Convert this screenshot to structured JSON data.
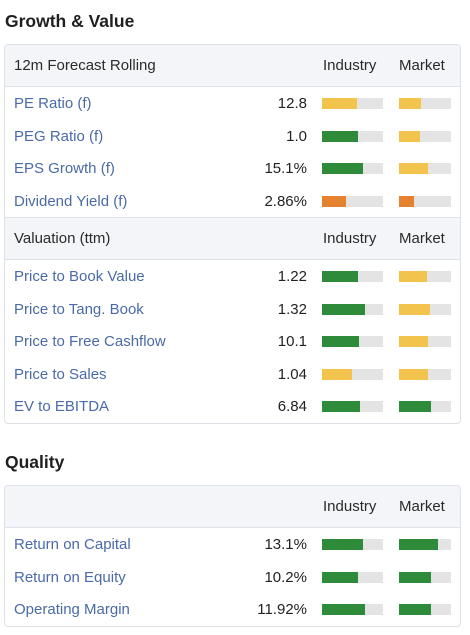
{
  "growth": {
    "title": "Growth & Value",
    "header1": {
      "label": "12m Forecast Rolling",
      "industry": "Industry",
      "market": "Market"
    },
    "rows1": [
      {
        "name": "PE Ratio (f)",
        "value": "12.8",
        "industry": {
          "fraction": 0.57,
          "color": "#f2c34d"
        },
        "market": {
          "fraction": 0.43,
          "color": "#f2c34d"
        }
      },
      {
        "name": "PEG Ratio (f)",
        "value": "1.0",
        "industry": {
          "fraction": 0.59,
          "color": "#2e8b3a"
        },
        "market": {
          "fraction": 0.41,
          "color": "#f2c34d"
        }
      },
      {
        "name": "EPS Growth (f)",
        "value": "15.1%",
        "industry": {
          "fraction": 0.67,
          "color": "#2e8b3a"
        },
        "market": {
          "fraction": 0.55,
          "color": "#f2c34d"
        }
      },
      {
        "name": "Dividend Yield (f)",
        "value": "2.86%",
        "industry": {
          "fraction": 0.39,
          "color": "#e5822f"
        },
        "market": {
          "fraction": 0.28,
          "color": "#e5822f"
        }
      }
    ],
    "header2": {
      "label": "Valuation (ttm)",
      "industry": "Industry",
      "market": "Market"
    },
    "rows2": [
      {
        "name": "Price to Book Value",
        "value": "1.22",
        "industry": {
          "fraction": 0.59,
          "color": "#2e8b3a"
        },
        "market": {
          "fraction": 0.54,
          "color": "#f2c34d"
        }
      },
      {
        "name": "Price to Tang. Book",
        "value": "1.32",
        "industry": {
          "fraction": 0.7,
          "color": "#2e8b3a"
        },
        "market": {
          "fraction": 0.6,
          "color": "#f2c34d"
        }
      },
      {
        "name": "Price to Free Cashflow",
        "value": "10.1",
        "industry": {
          "fraction": 0.61,
          "color": "#2e8b3a"
        },
        "market": {
          "fraction": 0.56,
          "color": "#f2c34d"
        }
      },
      {
        "name": "Price to Sales",
        "value": "1.04",
        "industry": {
          "fraction": 0.49,
          "color": "#f2c34d"
        },
        "market": {
          "fraction": 0.56,
          "color": "#f2c34d"
        }
      },
      {
        "name": "EV to EBITDA",
        "value": "6.84",
        "industry": {
          "fraction": 0.62,
          "color": "#2e8b3a"
        },
        "market": {
          "fraction": 0.62,
          "color": "#2e8b3a"
        }
      }
    ]
  },
  "quality": {
    "title": "Quality",
    "header": {
      "label": "",
      "industry": "Industry",
      "market": "Market"
    },
    "rows": [
      {
        "name": "Return on Capital",
        "value": "13.1%",
        "industry": {
          "fraction": 0.67,
          "color": "#2e8b3a"
        },
        "market": {
          "fraction": 0.75,
          "color": "#2e8b3a"
        }
      },
      {
        "name": "Return on Equity",
        "value": "10.2%",
        "industry": {
          "fraction": 0.59,
          "color": "#2e8b3a"
        },
        "market": {
          "fraction": 0.62,
          "color": "#2e8b3a"
        }
      },
      {
        "name": "Operating Margin",
        "value": "11.92%",
        "industry": {
          "fraction": 0.7,
          "color": "#2e8b3a"
        },
        "market": {
          "fraction": 0.62,
          "color": "#2e8b3a"
        }
      }
    ]
  }
}
